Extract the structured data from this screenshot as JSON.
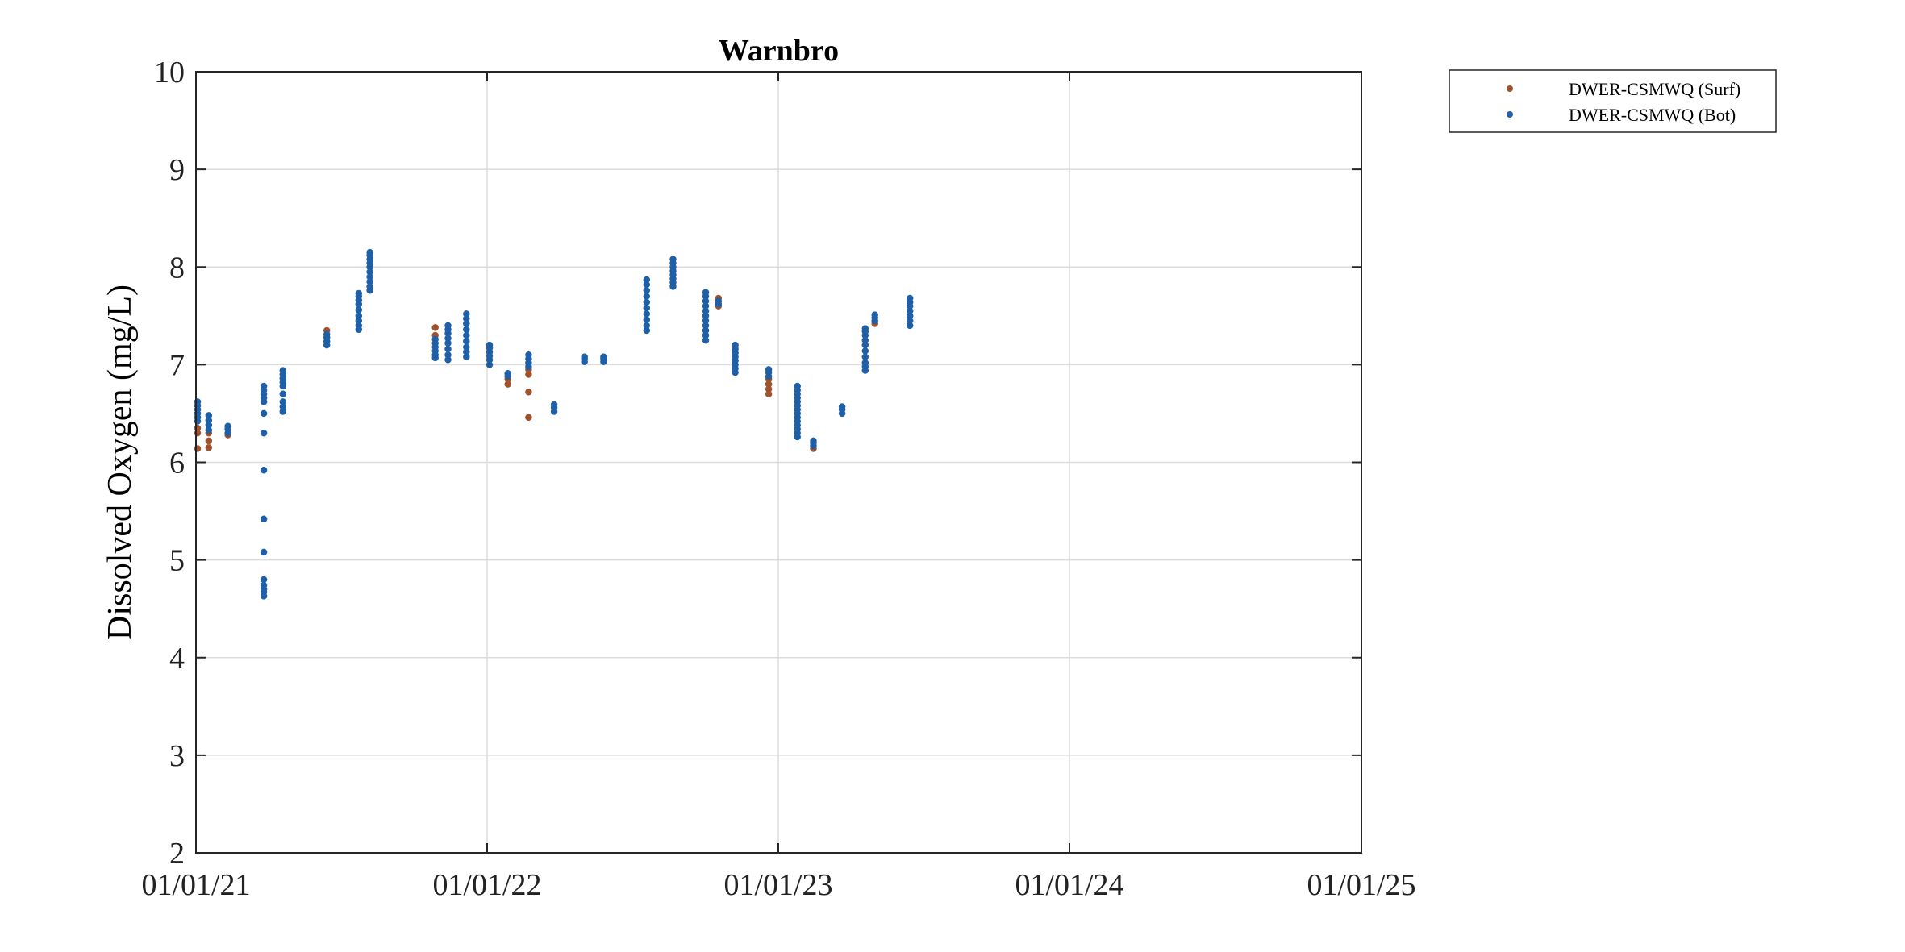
{
  "chart_data": {
    "type": "scatter",
    "title": "Warnbro",
    "xlabel": "",
    "ylabel": "Dissolved Oxygen (mg/L)",
    "xlim": [
      "2021-01-01",
      "2025-01-01"
    ],
    "ylim": [
      2,
      10
    ],
    "grid": true,
    "legend_position": "top-right, outside",
    "x_tick_labels": [
      {
        "date": "2021-01-01",
        "label": "01/01/21"
      },
      {
        "date": "2022-01-01",
        "label": "01/01/22"
      },
      {
        "date": "2023-01-01",
        "label": "01/01/23"
      },
      {
        "date": "2024-01-01",
        "label": "01/01/24"
      },
      {
        "date": "2025-01-01",
        "label": "01/01/25"
      }
    ],
    "y_ticks": [
      2,
      3,
      4,
      5,
      6,
      7,
      8,
      9,
      10
    ],
    "y_tick_labels": [
      "2",
      "3",
      "4",
      "5",
      "6",
      "7",
      "8",
      "9",
      "10"
    ],
    "series": [
      {
        "name": "DWER-CSMWQ (Surf)",
        "color": "#a0522d",
        "points": [
          {
            "x": "2021-01-03",
            "y": 6.14
          },
          {
            "x": "2021-01-03",
            "y": 6.3
          },
          {
            "x": "2021-01-03",
            "y": 6.35
          },
          {
            "x": "2021-01-17",
            "y": 6.15
          },
          {
            "x": "2021-01-17",
            "y": 6.22
          },
          {
            "x": "2021-01-17",
            "y": 6.3
          },
          {
            "x": "2021-01-17",
            "y": 6.38
          },
          {
            "x": "2021-02-10",
            "y": 6.28
          },
          {
            "x": "2021-06-14",
            "y": 7.35
          },
          {
            "x": "2021-10-28",
            "y": 7.3
          },
          {
            "x": "2021-10-28",
            "y": 7.38
          },
          {
            "x": "2022-01-27",
            "y": 6.8
          },
          {
            "x": "2022-01-27",
            "y": 6.85
          },
          {
            "x": "2022-02-22",
            "y": 6.46
          },
          {
            "x": "2022-02-22",
            "y": 6.72
          },
          {
            "x": "2022-02-22",
            "y": 6.9
          },
          {
            "x": "2022-02-22",
            "y": 6.95
          },
          {
            "x": "2022-10-18",
            "y": 7.6
          },
          {
            "x": "2022-10-18",
            "y": 7.68
          },
          {
            "x": "2022-12-20",
            "y": 6.7
          },
          {
            "x": "2022-12-20",
            "y": 6.75
          },
          {
            "x": "2022-12-20",
            "y": 6.8
          },
          {
            "x": "2022-12-20",
            "y": 6.85
          },
          {
            "x": "2023-02-14",
            "y": 6.14
          },
          {
            "x": "2023-05-02",
            "y": 7.42
          }
        ]
      },
      {
        "name": "DWER-CSMWQ (Bot)",
        "color": "#1f5fa8",
        "points": [
          {
            "x": "2021-01-03",
            "y": 6.42
          },
          {
            "x": "2021-01-03",
            "y": 6.46
          },
          {
            "x": "2021-01-03",
            "y": 6.5
          },
          {
            "x": "2021-01-03",
            "y": 6.54
          },
          {
            "x": "2021-01-03",
            "y": 6.58
          },
          {
            "x": "2021-01-03",
            "y": 6.62
          },
          {
            "x": "2021-01-17",
            "y": 6.33
          },
          {
            "x": "2021-01-17",
            "y": 6.38
          },
          {
            "x": "2021-01-17",
            "y": 6.43
          },
          {
            "x": "2021-01-17",
            "y": 6.48
          },
          {
            "x": "2021-02-10",
            "y": 6.3
          },
          {
            "x": "2021-02-10",
            "y": 6.34
          },
          {
            "x": "2021-02-10",
            "y": 6.37
          },
          {
            "x": "2021-03-27",
            "y": 4.63
          },
          {
            "x": "2021-03-27",
            "y": 4.67
          },
          {
            "x": "2021-03-27",
            "y": 4.7
          },
          {
            "x": "2021-03-27",
            "y": 4.74
          },
          {
            "x": "2021-03-27",
            "y": 4.8
          },
          {
            "x": "2021-03-27",
            "y": 5.08
          },
          {
            "x": "2021-03-27",
            "y": 5.42
          },
          {
            "x": "2021-03-27",
            "y": 5.92
          },
          {
            "x": "2021-03-27",
            "y": 6.3
          },
          {
            "x": "2021-03-27",
            "y": 6.5
          },
          {
            "x": "2021-03-27",
            "y": 6.62
          },
          {
            "x": "2021-03-27",
            "y": 6.66
          },
          {
            "x": "2021-03-27",
            "y": 6.7
          },
          {
            "x": "2021-03-27",
            "y": 6.74
          },
          {
            "x": "2021-03-27",
            "y": 6.78
          },
          {
            "x": "2021-04-20",
            "y": 6.52
          },
          {
            "x": "2021-04-20",
            "y": 6.57
          },
          {
            "x": "2021-04-20",
            "y": 6.62
          },
          {
            "x": "2021-04-20",
            "y": 6.7
          },
          {
            "x": "2021-04-20",
            "y": 6.78
          },
          {
            "x": "2021-04-20",
            "y": 6.82
          },
          {
            "x": "2021-04-20",
            "y": 6.86
          },
          {
            "x": "2021-04-20",
            "y": 6.9
          },
          {
            "x": "2021-04-20",
            "y": 6.94
          },
          {
            "x": "2021-06-14",
            "y": 7.2
          },
          {
            "x": "2021-06-14",
            "y": 7.24
          },
          {
            "x": "2021-06-14",
            "y": 7.28
          },
          {
            "x": "2021-06-14",
            "y": 7.31
          },
          {
            "x": "2021-07-24",
            "y": 7.36
          },
          {
            "x": "2021-07-24",
            "y": 7.4
          },
          {
            "x": "2021-07-24",
            "y": 7.45
          },
          {
            "x": "2021-07-24",
            "y": 7.5
          },
          {
            "x": "2021-07-24",
            "y": 7.56
          },
          {
            "x": "2021-07-24",
            "y": 7.62
          },
          {
            "x": "2021-07-24",
            "y": 7.66
          },
          {
            "x": "2021-07-24",
            "y": 7.7
          },
          {
            "x": "2021-07-24",
            "y": 7.73
          },
          {
            "x": "2021-08-07",
            "y": 7.76
          },
          {
            "x": "2021-08-07",
            "y": 7.8
          },
          {
            "x": "2021-08-07",
            "y": 7.85
          },
          {
            "x": "2021-08-07",
            "y": 7.9
          },
          {
            "x": "2021-08-07",
            "y": 7.95
          },
          {
            "x": "2021-08-07",
            "y": 8.0
          },
          {
            "x": "2021-08-07",
            "y": 8.04
          },
          {
            "x": "2021-08-07",
            "y": 8.08
          },
          {
            "x": "2021-08-07",
            "y": 8.12
          },
          {
            "x": "2021-08-07",
            "y": 8.15
          },
          {
            "x": "2021-10-28",
            "y": 7.07
          },
          {
            "x": "2021-10-28",
            "y": 7.1
          },
          {
            "x": "2021-10-28",
            "y": 7.14
          },
          {
            "x": "2021-10-28",
            "y": 7.18
          },
          {
            "x": "2021-10-28",
            "y": 7.22
          },
          {
            "x": "2021-10-28",
            "y": 7.26
          },
          {
            "x": "2021-11-13",
            "y": 7.05
          },
          {
            "x": "2021-11-13",
            "y": 7.1
          },
          {
            "x": "2021-11-13",
            "y": 7.16
          },
          {
            "x": "2021-11-13",
            "y": 7.22
          },
          {
            "x": "2021-11-13",
            "y": 7.27
          },
          {
            "x": "2021-11-13",
            "y": 7.32
          },
          {
            "x": "2021-11-13",
            "y": 7.36
          },
          {
            "x": "2021-11-13",
            "y": 7.4
          },
          {
            "x": "2021-12-06",
            "y": 7.08
          },
          {
            "x": "2021-12-06",
            "y": 7.13
          },
          {
            "x": "2021-12-06",
            "y": 7.18
          },
          {
            "x": "2021-12-06",
            "y": 7.24
          },
          {
            "x": "2021-12-06",
            "y": 7.3
          },
          {
            "x": "2021-12-06",
            "y": 7.36
          },
          {
            "x": "2021-12-06",
            "y": 7.42
          },
          {
            "x": "2021-12-06",
            "y": 7.47
          },
          {
            "x": "2021-12-06",
            "y": 7.52
          },
          {
            "x": "2022-01-04",
            "y": 7.0
          },
          {
            "x": "2022-01-04",
            "y": 7.05
          },
          {
            "x": "2022-01-04",
            "y": 7.09
          },
          {
            "x": "2022-01-04",
            "y": 7.13
          },
          {
            "x": "2022-01-04",
            "y": 7.17
          },
          {
            "x": "2022-01-04",
            "y": 7.2
          },
          {
            "x": "2022-01-27",
            "y": 6.88
          },
          {
            "x": "2022-01-27",
            "y": 6.91
          },
          {
            "x": "2022-02-22",
            "y": 6.98
          },
          {
            "x": "2022-02-22",
            "y": 7.02
          },
          {
            "x": "2022-02-22",
            "y": 7.06
          },
          {
            "x": "2022-02-22",
            "y": 7.1
          },
          {
            "x": "2022-03-26",
            "y": 6.52
          },
          {
            "x": "2022-03-26",
            "y": 6.56
          },
          {
            "x": "2022-03-26",
            "y": 6.59
          },
          {
            "x": "2022-05-03",
            "y": 7.03
          },
          {
            "x": "2022-05-03",
            "y": 7.06
          },
          {
            "x": "2022-05-03",
            "y": 7.08
          },
          {
            "x": "2022-05-27",
            "y": 7.03
          },
          {
            "x": "2022-05-27",
            "y": 7.06
          },
          {
            "x": "2022-05-27",
            "y": 7.08
          },
          {
            "x": "2022-07-20",
            "y": 7.35
          },
          {
            "x": "2022-07-20",
            "y": 7.4
          },
          {
            "x": "2022-07-20",
            "y": 7.46
          },
          {
            "x": "2022-07-20",
            "y": 7.52
          },
          {
            "x": "2022-07-20",
            "y": 7.58
          },
          {
            "x": "2022-07-20",
            "y": 7.64
          },
          {
            "x": "2022-07-20",
            "y": 7.7
          },
          {
            "x": "2022-07-20",
            "y": 7.76
          },
          {
            "x": "2022-07-20",
            "y": 7.82
          },
          {
            "x": "2022-07-20",
            "y": 7.87
          },
          {
            "x": "2022-08-22",
            "y": 7.8
          },
          {
            "x": "2022-08-22",
            "y": 7.84
          },
          {
            "x": "2022-08-22",
            "y": 7.88
          },
          {
            "x": "2022-08-22",
            "y": 7.92
          },
          {
            "x": "2022-08-22",
            "y": 7.96
          },
          {
            "x": "2022-08-22",
            "y": 8.0
          },
          {
            "x": "2022-08-22",
            "y": 8.04
          },
          {
            "x": "2022-08-22",
            "y": 8.08
          },
          {
            "x": "2022-10-02",
            "y": 7.25
          },
          {
            "x": "2022-10-02",
            "y": 7.3
          },
          {
            "x": "2022-10-02",
            "y": 7.35
          },
          {
            "x": "2022-10-02",
            "y": 7.4
          },
          {
            "x": "2022-10-02",
            "y": 7.45
          },
          {
            "x": "2022-10-02",
            "y": 7.5
          },
          {
            "x": "2022-10-02",
            "y": 7.55
          },
          {
            "x": "2022-10-02",
            "y": 7.6
          },
          {
            "x": "2022-10-02",
            "y": 7.65
          },
          {
            "x": "2022-10-02",
            "y": 7.7
          },
          {
            "x": "2022-10-02",
            "y": 7.74
          },
          {
            "x": "2022-10-18",
            "y": 7.62
          },
          {
            "x": "2022-10-18",
            "y": 7.65
          },
          {
            "x": "2022-11-08",
            "y": 6.92
          },
          {
            "x": "2022-11-08",
            "y": 6.96
          },
          {
            "x": "2022-11-08",
            "y": 7.0
          },
          {
            "x": "2022-11-08",
            "y": 7.04
          },
          {
            "x": "2022-11-08",
            "y": 7.08
          },
          {
            "x": "2022-11-08",
            "y": 7.12
          },
          {
            "x": "2022-11-08",
            "y": 7.16
          },
          {
            "x": "2022-11-08",
            "y": 7.2
          },
          {
            "x": "2022-12-20",
            "y": 6.88
          },
          {
            "x": "2022-12-20",
            "y": 6.92
          },
          {
            "x": "2022-12-20",
            "y": 6.95
          },
          {
            "x": "2023-01-25",
            "y": 6.26
          },
          {
            "x": "2023-01-25",
            "y": 6.3
          },
          {
            "x": "2023-01-25",
            "y": 6.34
          },
          {
            "x": "2023-01-25",
            "y": 6.38
          },
          {
            "x": "2023-01-25",
            "y": 6.42
          },
          {
            "x": "2023-01-25",
            "y": 6.46
          },
          {
            "x": "2023-01-25",
            "y": 6.5
          },
          {
            "x": "2023-01-25",
            "y": 6.54
          },
          {
            "x": "2023-01-25",
            "y": 6.58
          },
          {
            "x": "2023-01-25",
            "y": 6.62
          },
          {
            "x": "2023-01-25",
            "y": 6.66
          },
          {
            "x": "2023-01-25",
            "y": 6.7
          },
          {
            "x": "2023-01-25",
            "y": 6.74
          },
          {
            "x": "2023-01-25",
            "y": 6.78
          },
          {
            "x": "2023-02-14",
            "y": 6.17
          },
          {
            "x": "2023-02-14",
            "y": 6.2
          },
          {
            "x": "2023-02-14",
            "y": 6.22
          },
          {
            "x": "2023-03-22",
            "y": 6.5
          },
          {
            "x": "2023-03-22",
            "y": 6.54
          },
          {
            "x": "2023-03-22",
            "y": 6.57
          },
          {
            "x": "2023-04-20",
            "y": 6.94
          },
          {
            "x": "2023-04-20",
            "y": 6.98
          },
          {
            "x": "2023-04-20",
            "y": 7.02
          },
          {
            "x": "2023-04-20",
            "y": 7.08
          },
          {
            "x": "2023-04-20",
            "y": 7.14
          },
          {
            "x": "2023-04-20",
            "y": 7.2
          },
          {
            "x": "2023-04-20",
            "y": 7.25
          },
          {
            "x": "2023-04-20",
            "y": 7.3
          },
          {
            "x": "2023-04-20",
            "y": 7.34
          },
          {
            "x": "2023-04-20",
            "y": 7.37
          },
          {
            "x": "2023-05-02",
            "y": 7.45
          },
          {
            "x": "2023-05-02",
            "y": 7.48
          },
          {
            "x": "2023-05-02",
            "y": 7.51
          },
          {
            "x": "2023-06-15",
            "y": 7.4
          },
          {
            "x": "2023-06-15",
            "y": 7.45
          },
          {
            "x": "2023-06-15",
            "y": 7.5
          },
          {
            "x": "2023-06-15",
            "y": 7.55
          },
          {
            "x": "2023-06-15",
            "y": 7.6
          },
          {
            "x": "2023-06-15",
            "y": 7.64
          },
          {
            "x": "2023-06-15",
            "y": 7.68
          }
        ]
      }
    ]
  }
}
